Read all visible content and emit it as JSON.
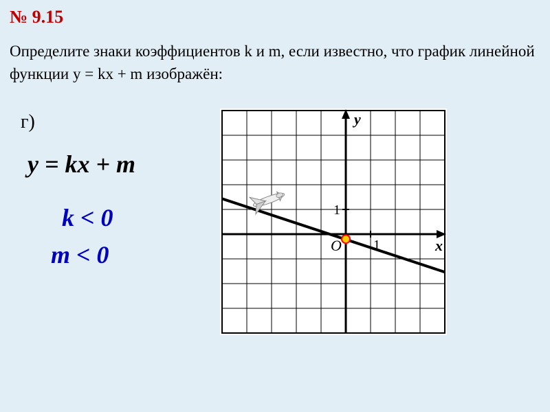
{
  "problem_number": "№ 9.15",
  "problem_text": "Определите знаки коэффициентов k и m, если известно, что график линейной функции y = kx + m изображён:",
  "subpart": "г)",
  "formula": "y = kx + m",
  "condition_k": "k < 0",
  "condition_m": "m < 0",
  "chart": {
    "type": "line",
    "background_color": "#ffffff",
    "grid_color": "#000000",
    "grid_stroke": 1,
    "border_stroke": 2,
    "cell": 36,
    "cols": 9,
    "rows": 9,
    "origin_col": 5,
    "origin_row": 5,
    "axis_stroke": 3,
    "line_color": "#000000",
    "line_stroke": 4,
    "line_p1": {
      "gx": -5.5,
      "gy": 1.6
    },
    "line_p2": {
      "gx": 4.5,
      "gy": -1.7
    },
    "labels": {
      "y_axis": "y",
      "x_axis": "x",
      "origin": "O",
      "one_x": "1",
      "one_y": "1"
    },
    "intercept_dot": {
      "fill": "#ffcc00",
      "stroke": "#ff0000",
      "r": 6,
      "gx": 0,
      "gy": -0.2
    },
    "label_fontsize": 22,
    "tick_fontsize": 20
  },
  "colors": {
    "page_bg": "#e2eef6",
    "accent_red": "#c00000",
    "accent_blue": "#0000c0",
    "text": "#000000"
  }
}
